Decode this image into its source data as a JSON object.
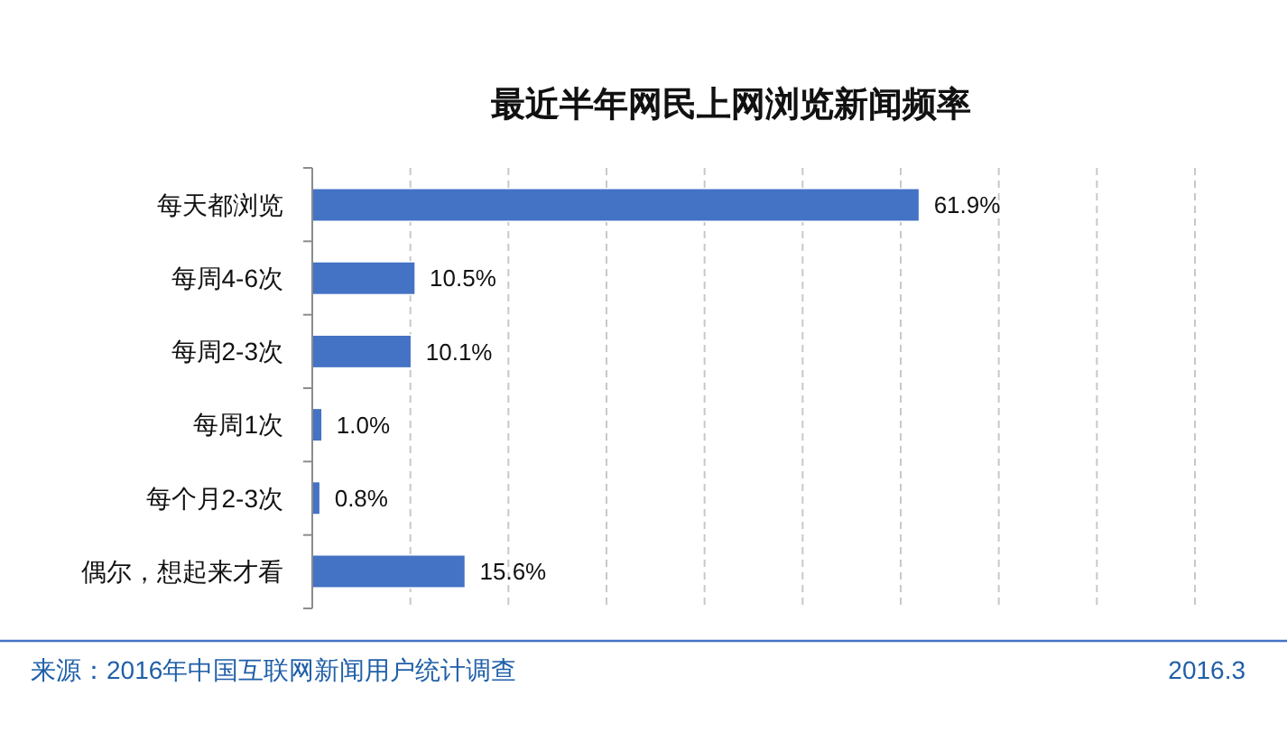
{
  "chart_data": {
    "type": "bar",
    "orientation": "horizontal",
    "title": "最近半年网民上网浏览新闻频率",
    "categories": [
      "每天都浏览",
      "每周4-6次",
      "每周2-3次",
      "每周1次",
      "每个月2-3次",
      "偶尔，想起来才看"
    ],
    "values": [
      61.9,
      10.5,
      10.1,
      1.0,
      0.8,
      15.6
    ],
    "color": "#4472c4",
    "value_labels": [
      "61.9%",
      "10.5%",
      "10.1%",
      "1.0%",
      "0.8%",
      "15.6%"
    ],
    "xlim": [
      0,
      90
    ],
    "xticks": [
      {
        "value": 0,
        "label": null
      },
      {
        "value": 10,
        "label": null
      },
      {
        "value": 20,
        "label": null
      },
      {
        "value": 30,
        "label": null
      },
      {
        "value": 40,
        "label": null
      },
      {
        "value": 50,
        "label": null
      },
      {
        "value": 60,
        "label": null
      },
      {
        "value": 70,
        "label": null
      },
      {
        "value": 80,
        "label": null
      },
      {
        "value": 90,
        "label": null
      }
    ],
    "grid": "x",
    "tick_labels": "y",
    "annotations": [
      "来源：2016年中国互联网新闻用户统计调查",
      "2016.3"
    ]
  }
}
